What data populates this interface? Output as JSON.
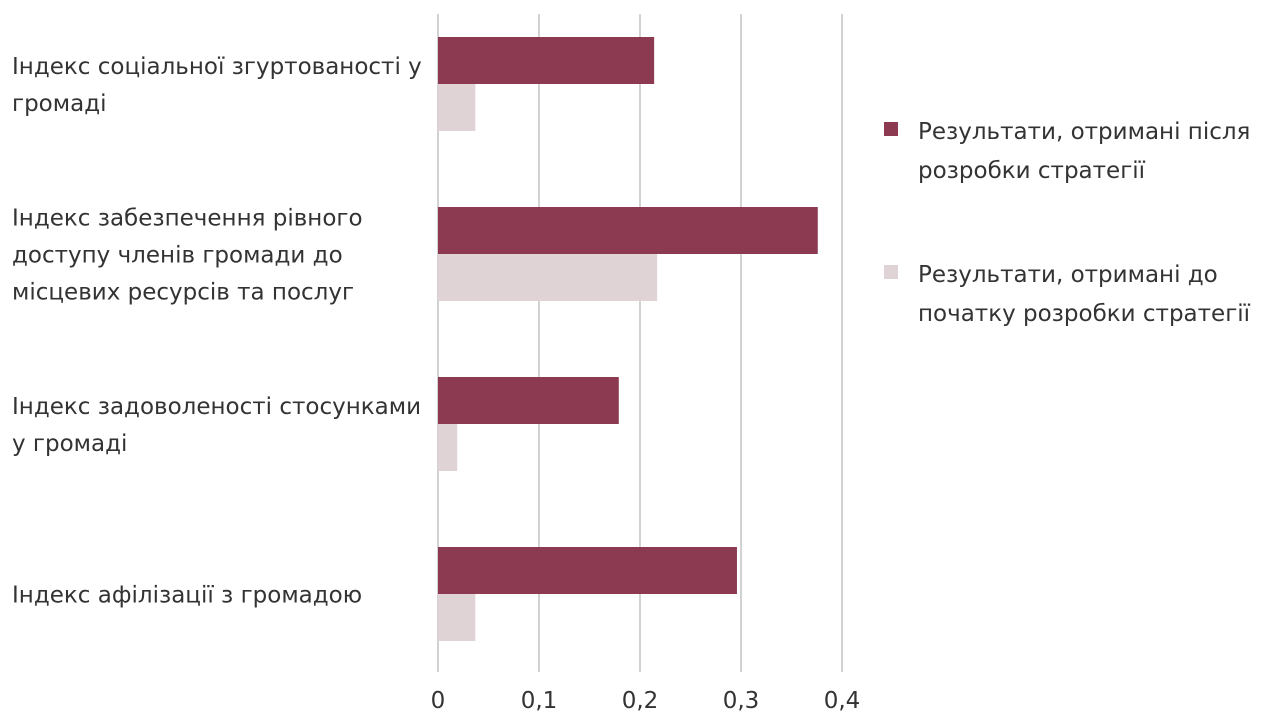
{
  "chart_data": {
    "type": "barh",
    "categories": [
      "Індекс соціальної згуртованості у громаді",
      "Індекс забезпечення рівного доступу членів громади до місцевих ресурсів та послуг",
      "Індекс задоволеності стосунками у громаді",
      "Індекс афілізації з громадою"
    ],
    "series": [
      {
        "name": "Результати, отримані після розробки стратегії",
        "color": "#8b3a52",
        "values": [
          0.214,
          0.376,
          0.179,
          0.296
        ]
      },
      {
        "name": "Результати, отримані до початку розробки стратегії",
        "color": "#e0d3d6",
        "values": [
          0.037,
          0.217,
          0.019,
          0.037
        ]
      }
    ],
    "xlim": [
      0,
      0.4
    ],
    "xticks": [
      0,
      {
        "value": 0.1,
        "label": "0,1"
      },
      {
        "value": 0.2,
        "label": "0,2"
      },
      {
        "value": 0.3,
        "label": "0,3"
      },
      {
        "value": 0.4,
        "label": "0,4"
      }
    ],
    "grid": true,
    "legend": "right"
  }
}
